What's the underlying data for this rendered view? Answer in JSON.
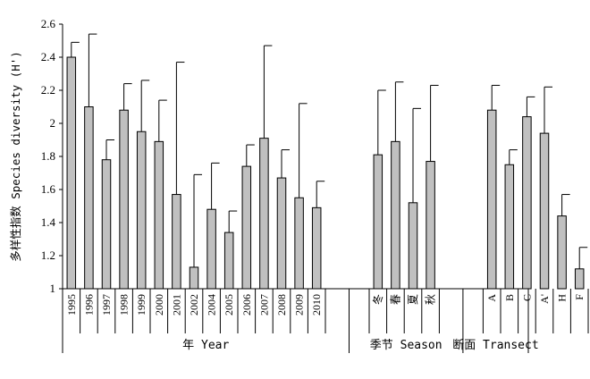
{
  "chart_data": {
    "type": "bar",
    "ylabel": "多样性指数 Species diversity (H')",
    "ylim": [
      1,
      2.6
    ],
    "yticks": [
      "1",
      "1.2",
      "1.4",
      "1.6",
      "1.8",
      "2",
      "2.2",
      "2.4",
      "2.6"
    ],
    "bar_color": "#c0c0c0",
    "edge_color": "#000000",
    "groups": [
      {
        "label": "年 Year",
        "categories": [
          "1995",
          "1996",
          "1997",
          "1998",
          "1999",
          "2000",
          "2001",
          "2002",
          "2004",
          "2005",
          "2006",
          "2007",
          "2008",
          "2009",
          "2010"
        ],
        "values": [
          2.4,
          2.1,
          1.78,
          2.08,
          1.95,
          1.89,
          1.57,
          1.13,
          1.48,
          1.34,
          1.74,
          1.91,
          1.67,
          1.55,
          1.49
        ],
        "errors": [
          0.09,
          0.44,
          0.12,
          0.16,
          0.31,
          0.25,
          0.8,
          0.56,
          0.28,
          0.13,
          0.13,
          0.56,
          0.17,
          0.57,
          0.16
        ]
      },
      {
        "label": "季节 Season",
        "categories": [
          "冬",
          "春",
          "夏",
          "秋"
        ],
        "values": [
          1.81,
          1.89,
          1.52,
          1.77
        ],
        "errors": [
          0.39,
          0.36,
          0.57,
          0.46
        ]
      },
      {
        "label": "断面 Transect",
        "categories": [
          "A",
          "B",
          "C",
          "A'",
          "H",
          "F"
        ],
        "values": [
          2.08,
          1.75,
          2.04,
          1.94,
          1.44,
          1.12
        ],
        "errors": [
          0.15,
          0.09,
          0.12,
          0.28,
          0.13,
          0.13
        ]
      }
    ]
  }
}
